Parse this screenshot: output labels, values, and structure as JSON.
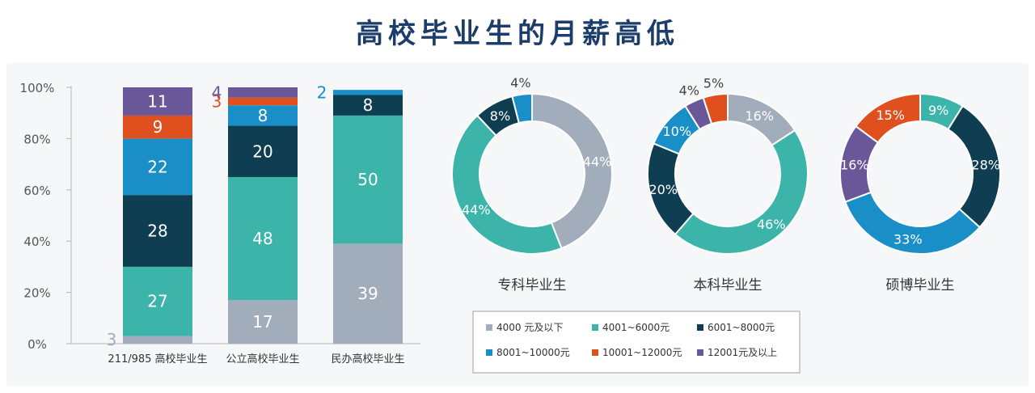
{
  "title": "高校毕业生的月薪高低",
  "legend": [
    {
      "label": "4000 元及以下",
      "color": "#a2adbc"
    },
    {
      "label": "4001~6000元",
      "color": "#3cb4aa"
    },
    {
      "label": "6001~8000元",
      "color": "#0f3d52"
    },
    {
      "label": "8001~10000元",
      "color": "#1a8ec6"
    },
    {
      "label": "10001~12000元",
      "color": "#e0501f"
    },
    {
      "label": "12001元及以上",
      "color": "#6a5799"
    }
  ],
  "chart_data": [
    {
      "type": "bar",
      "stacked": true,
      "categories": [
        "211/985 高校毕业生",
        "公立高校毕业生",
        "民办高校毕业生"
      ],
      "yticks": [
        "0%",
        "20%",
        "40%",
        "60%",
        "80%",
        "100%"
      ],
      "ylim": [
        0,
        100
      ],
      "series": [
        {
          "name": "4000 元及以下",
          "values": [
            3,
            17,
            39
          ]
        },
        {
          "name": "4001~6000元",
          "values": [
            27,
            48,
            50
          ]
        },
        {
          "name": "6001~8000元",
          "values": [
            28,
            20,
            8
          ]
        },
        {
          "name": "8001~10000元",
          "values": [
            22,
            8,
            2
          ]
        },
        {
          "name": "10001~12000元",
          "values": [
            9,
            3,
            0
          ]
        },
        {
          "name": "12001元及以上",
          "values": [
            11,
            4,
            0
          ]
        }
      ]
    },
    {
      "type": "pie",
      "title": "专科毕业生",
      "slices": [
        {
          "name": "4000 元及以下",
          "value": 44
        },
        {
          "name": "4001~6000元",
          "value": 44
        },
        {
          "name": "6001~8000元",
          "value": 8
        },
        {
          "name": "8001~10000元",
          "value": 4
        }
      ]
    },
    {
      "type": "pie",
      "title": "本科毕业生",
      "slices": [
        {
          "name": "4000 元及以下",
          "value": 16
        },
        {
          "name": "4001~6000元",
          "value": 46
        },
        {
          "name": "6001~8000元",
          "value": 20
        },
        {
          "name": "8001~10000元",
          "value": 10
        },
        {
          "name": "12001元及以上",
          "value": 4
        },
        {
          "name": "10001~12000元",
          "value": 5
        }
      ]
    },
    {
      "type": "pie",
      "title": "硕博毕业生",
      "slices": [
        {
          "name": "4001~6000元",
          "value": 9
        },
        {
          "name": "6001~8000元",
          "value": 28
        },
        {
          "name": "8001~10000元",
          "value": 33
        },
        {
          "name": "12001元及以上",
          "value": 16
        },
        {
          "name": "10001~12000元",
          "value": 15
        }
      ]
    }
  ]
}
